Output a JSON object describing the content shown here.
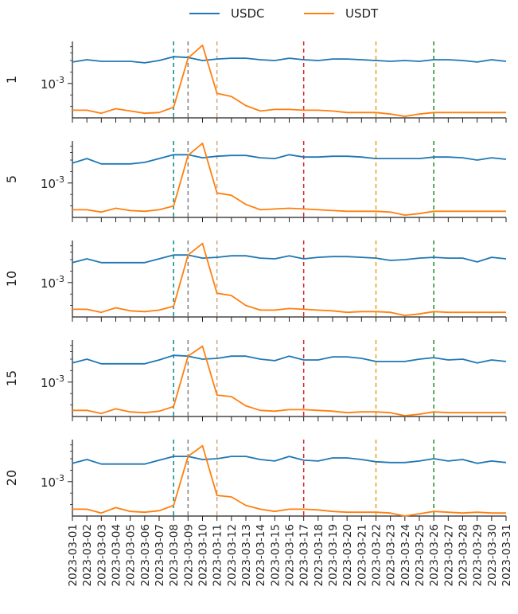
{
  "chart_data": {
    "type": "line",
    "subplots_ylabel": [
      "1",
      "5",
      "10",
      "15",
      "20"
    ],
    "y_tick_label": "10^-3",
    "y_scale": "log",
    "x": [
      "2023-03-01",
      "2023-03-02",
      "2023-03-03",
      "2023-03-04",
      "2023-03-05",
      "2023-03-06",
      "2023-03-07",
      "2023-03-08",
      "2023-03-09",
      "2023-03-10",
      "2023-03-11",
      "2023-03-12",
      "2023-03-13",
      "2023-03-14",
      "2023-03-15",
      "2023-03-16",
      "2023-03-17",
      "2023-03-18",
      "2023-03-19",
      "2023-03-20",
      "2023-03-21",
      "2023-03-22",
      "2023-03-23",
      "2023-03-24",
      "2023-03-25",
      "2023-03-26",
      "2023-03-27",
      "2023-03-28",
      "2023-03-29",
      "2023-03-30",
      "2023-03-31"
    ],
    "legend": [
      {
        "name": "USDC",
        "color": "#1f77b4"
      },
      {
        "name": "USDT",
        "color": "#ff7f0e"
      }
    ],
    "vlines": [
      {
        "date_index": 7.0,
        "color": "#008b8b"
      },
      {
        "date_index": 8.0,
        "color": "#808080"
      },
      {
        "date_index": 10.0,
        "color": "#d2a679"
      },
      {
        "date_index": 16.0,
        "color": "#d62728"
      },
      {
        "date_index": 21.0,
        "color": "#daa520"
      },
      {
        "date_index": 25.0,
        "color": "#228b22"
      }
    ],
    "ylim_log10": [
      -3.45,
      -2.45
    ],
    "panels": [
      {
        "label": "1",
        "series": [
          {
            "name": "USDC",
            "log10_values": [
              -2.72,
              -2.69,
              -2.71,
              -2.71,
              -2.71,
              -2.73,
              -2.7,
              -2.65,
              -2.66,
              -2.7,
              -2.68,
              -2.67,
              -2.67,
              -2.69,
              -2.7,
              -2.67,
              -2.69,
              -2.7,
              -2.68,
              -2.68,
              -2.69,
              -2.7,
              -2.71,
              -2.7,
              -2.71,
              -2.69,
              -2.69,
              -2.7,
              -2.72,
              -2.69,
              -2.71
            ]
          },
          {
            "name": "USDT",
            "log10_values": [
              -3.35,
              -3.35,
              -3.39,
              -3.33,
              -3.36,
              -3.39,
              -3.38,
              -3.31,
              -2.67,
              -2.5,
              -3.13,
              -3.17,
              -3.29,
              -3.36,
              -3.34,
              -3.34,
              -3.35,
              -3.35,
              -3.36,
              -3.38,
              -3.38,
              -3.38,
              -3.4,
              -3.43,
              -3.4,
              -3.38,
              -3.38,
              -3.38,
              -3.38,
              -3.38,
              -3.38
            ]
          }
        ]
      },
      {
        "label": "5",
        "series": [
          {
            "name": "USDC",
            "log10_values": [
              -2.74,
              -2.68,
              -2.75,
              -2.75,
              -2.75,
              -2.73,
              -2.68,
              -2.63,
              -2.63,
              -2.67,
              -2.65,
              -2.64,
              -2.64,
              -2.67,
              -2.68,
              -2.63,
              -2.66,
              -2.66,
              -2.65,
              -2.65,
              -2.66,
              -2.68,
              -2.68,
              -2.68,
              -2.68,
              -2.66,
              -2.66,
              -2.67,
              -2.7,
              -2.67,
              -2.69
            ]
          },
          {
            "name": "USDT",
            "log10_values": [
              -3.35,
              -3.35,
              -3.38,
              -3.33,
              -3.36,
              -3.37,
              -3.35,
              -3.3,
              -2.64,
              -2.48,
              -3.13,
              -3.16,
              -3.28,
              -3.35,
              -3.34,
              -3.33,
              -3.34,
              -3.35,
              -3.36,
              -3.37,
              -3.37,
              -3.37,
              -3.38,
              -3.42,
              -3.4,
              -3.37,
              -3.37,
              -3.37,
              -3.37,
              -3.37,
              -3.37
            ]
          }
        ]
      },
      {
        "label": "10",
        "series": [
          {
            "name": "USDC",
            "log10_values": [
              -2.74,
              -2.69,
              -2.74,
              -2.74,
              -2.74,
              -2.74,
              -2.69,
              -2.64,
              -2.64,
              -2.68,
              -2.67,
              -2.65,
              -2.65,
              -2.68,
              -2.69,
              -2.65,
              -2.69,
              -2.67,
              -2.66,
              -2.66,
              -2.67,
              -2.68,
              -2.71,
              -2.7,
              -2.68,
              -2.67,
              -2.68,
              -2.68,
              -2.73,
              -2.67,
              -2.69
            ]
          },
          {
            "name": "USDT",
            "log10_values": [
              -3.35,
              -3.35,
              -3.39,
              -3.33,
              -3.37,
              -3.38,
              -3.36,
              -3.31,
              -2.64,
              -2.49,
              -3.14,
              -3.17,
              -3.3,
              -3.36,
              -3.36,
              -3.34,
              -3.35,
              -3.36,
              -3.37,
              -3.39,
              -3.38,
              -3.38,
              -3.39,
              -3.43,
              -3.41,
              -3.38,
              -3.39,
              -3.39,
              -3.39,
              -3.39,
              -3.39
            ]
          }
        ]
      },
      {
        "label": "15",
        "series": [
          {
            "name": "USDC",
            "log10_values": [
              -2.75,
              -2.7,
              -2.76,
              -2.76,
              -2.76,
              -2.76,
              -2.71,
              -2.65,
              -2.66,
              -2.7,
              -2.69,
              -2.66,
              -2.66,
              -2.7,
              -2.72,
              -2.66,
              -2.71,
              -2.71,
              -2.67,
              -2.67,
              -2.69,
              -2.73,
              -2.73,
              -2.73,
              -2.7,
              -2.68,
              -2.71,
              -2.7,
              -2.75,
              -2.71,
              -2.73
            ]
          },
          {
            "name": "USDT",
            "log10_values": [
              -3.37,
              -3.37,
              -3.41,
              -3.35,
              -3.39,
              -3.4,
              -3.38,
              -3.32,
              -2.66,
              -2.53,
              -3.17,
              -3.19,
              -3.31,
              -3.37,
              -3.38,
              -3.36,
              -3.36,
              -3.37,
              -3.38,
              -3.4,
              -3.39,
              -3.39,
              -3.4,
              -3.44,
              -3.42,
              -3.39,
              -3.4,
              -3.4,
              -3.4,
              -3.4,
              -3.4
            ]
          }
        ]
      },
      {
        "label": "20",
        "series": [
          {
            "name": "USDC",
            "log10_values": [
              -2.76,
              -2.71,
              -2.77,
              -2.77,
              -2.77,
              -2.77,
              -2.72,
              -2.67,
              -2.67,
              -2.71,
              -2.7,
              -2.67,
              -2.67,
              -2.71,
              -2.73,
              -2.67,
              -2.72,
              -2.73,
              -2.69,
              -2.69,
              -2.71,
              -2.74,
              -2.75,
              -2.75,
              -2.73,
              -2.7,
              -2.73,
              -2.71,
              -2.76,
              -2.73,
              -2.75
            ]
          },
          {
            "name": "USDT",
            "log10_values": [
              -3.36,
              -3.36,
              -3.41,
              -3.34,
              -3.39,
              -3.4,
              -3.38,
              -3.31,
              -2.67,
              -2.53,
              -3.18,
              -3.2,
              -3.31,
              -3.36,
              -3.39,
              -3.36,
              -3.36,
              -3.37,
              -3.39,
              -3.4,
              -3.4,
              -3.4,
              -3.41,
              -3.45,
              -3.42,
              -3.39,
              -3.4,
              -3.41,
              -3.4,
              -3.41,
              -3.41
            ]
          }
        ]
      }
    ]
  }
}
